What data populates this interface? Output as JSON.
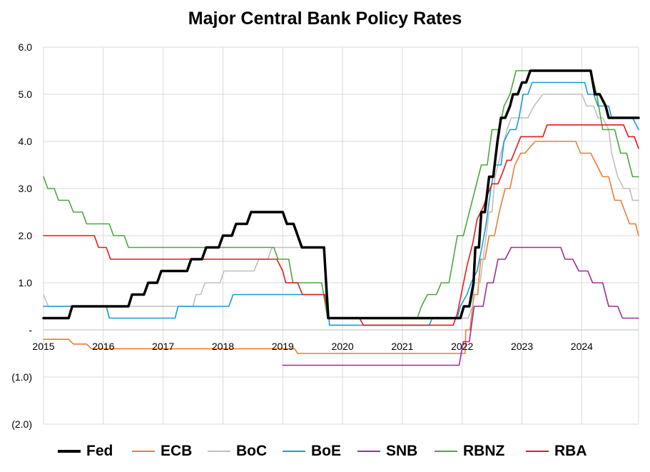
{
  "chart_data": {
    "type": "line",
    "title": "Major Central Bank Policy Rates",
    "xlabel": "",
    "ylabel": "",
    "xlim": [
      2015.0,
      2024.95
    ],
    "ylim": [
      -2.0,
      6.0
    ],
    "x_ticks": [
      2015,
      2016,
      2017,
      2018,
      2019,
      2020,
      2021,
      2022,
      2023,
      2024
    ],
    "x_tick_labels": [
      "2015",
      "2016",
      "2017",
      "2018",
      "2019",
      "2020",
      "2021",
      "2022",
      "2023",
      "2024"
    ],
    "y_ticks": [
      6,
      5,
      4,
      3,
      2,
      1,
      0,
      -1,
      -2
    ],
    "y_tick_labels": [
      "6.0",
      "5.0",
      "4.0",
      "3.0",
      "2.0",
      "1.0",
      "-",
      "(1.0)",
      "(2.0)"
    ],
    "grid": true,
    "legend_position": "bottom",
    "series": [
      {
        "name": "Fed",
        "color": "#000000",
        "points": [
          [
            2015.0,
            0.25
          ],
          [
            2015.42,
            0.25
          ],
          [
            2015.48,
            0.5
          ],
          [
            2016.42,
            0.5
          ],
          [
            2016.48,
            0.75
          ],
          [
            2016.68,
            0.75
          ],
          [
            2016.75,
            1.0
          ],
          [
            2016.9,
            1.0
          ],
          [
            2016.97,
            1.25
          ],
          [
            2017.4,
            1.25
          ],
          [
            2017.47,
            1.5
          ],
          [
            2017.65,
            1.5
          ],
          [
            2017.72,
            1.75
          ],
          [
            2017.93,
            1.75
          ],
          [
            2018.0,
            2.0
          ],
          [
            2018.15,
            2.0
          ],
          [
            2018.22,
            2.25
          ],
          [
            2018.4,
            2.25
          ],
          [
            2018.47,
            2.5
          ],
          [
            2019.0,
            2.5
          ],
          [
            2019.07,
            2.25
          ],
          [
            2019.18,
            2.25
          ],
          [
            2019.32,
            1.75
          ],
          [
            2019.69,
            1.75
          ],
          [
            2019.76,
            0.25
          ],
          [
            2021.97,
            0.25
          ],
          [
            2022.03,
            0.5
          ],
          [
            2022.12,
            0.5
          ],
          [
            2022.19,
            1.0
          ],
          [
            2022.22,
            1.75
          ],
          [
            2022.28,
            1.75
          ],
          [
            2022.32,
            2.5
          ],
          [
            2022.38,
            2.5
          ],
          [
            2022.45,
            3.25
          ],
          [
            2022.52,
            3.25
          ],
          [
            2022.59,
            4.0
          ],
          [
            2022.65,
            4.5
          ],
          [
            2022.72,
            4.5
          ],
          [
            2022.8,
            4.75
          ],
          [
            2022.85,
            5.0
          ],
          [
            2022.93,
            5.0
          ],
          [
            2023.0,
            5.25
          ],
          [
            2023.07,
            5.25
          ],
          [
            2023.14,
            5.5
          ],
          [
            2024.15,
            5.5
          ],
          [
            2024.22,
            5.0
          ],
          [
            2024.3,
            5.0
          ],
          [
            2024.4,
            4.75
          ],
          [
            2024.45,
            4.5
          ],
          [
            2024.95,
            4.5
          ]
        ]
      },
      {
        "name": "ECB",
        "color": "#ed7d31",
        "points": [
          [
            2015.0,
            -0.2
          ],
          [
            2015.42,
            -0.2
          ],
          [
            2015.5,
            -0.3
          ],
          [
            2015.72,
            -0.3
          ],
          [
            2015.8,
            -0.4
          ],
          [
            2019.2,
            -0.4
          ],
          [
            2019.25,
            -0.5
          ],
          [
            2022.05,
            -0.5
          ],
          [
            2022.06,
            0.0
          ],
          [
            2022.13,
            0.0
          ],
          [
            2022.2,
            0.75
          ],
          [
            2022.26,
            0.75
          ],
          [
            2022.31,
            1.5
          ],
          [
            2022.38,
            1.5
          ],
          [
            2022.45,
            2.0
          ],
          [
            2022.54,
            2.0
          ],
          [
            2022.62,
            2.5
          ],
          [
            2022.72,
            3.0
          ],
          [
            2022.8,
            3.0
          ],
          [
            2022.88,
            3.5
          ],
          [
            2022.98,
            3.75
          ],
          [
            2023.05,
            3.75
          ],
          [
            2023.22,
            4.0
          ],
          [
            2023.9,
            4.0
          ],
          [
            2023.98,
            3.75
          ],
          [
            2024.15,
            3.75
          ],
          [
            2024.25,
            3.5
          ],
          [
            2024.35,
            3.25
          ],
          [
            2024.45,
            3.25
          ],
          [
            2024.55,
            2.75
          ],
          [
            2024.65,
            2.75
          ],
          [
            2024.8,
            2.25
          ],
          [
            2024.9,
            2.25
          ],
          [
            2024.95,
            2.0
          ]
        ]
      },
      {
        "name": "BoC",
        "color": "#bfbfbf",
        "points": [
          [
            2015.0,
            0.75
          ],
          [
            2015.08,
            0.5
          ],
          [
            2015.5,
            0.5
          ],
          [
            2017.02,
            0.5
          ],
          [
            2017.05,
            0.5
          ],
          [
            2017.07,
            0.5
          ],
          [
            2017.08,
            0.5
          ],
          [
            2017.1,
            0.5
          ],
          [
            2017.12,
            0.5
          ],
          [
            2017.17,
            0.5
          ],
          [
            2017.2,
            0.5
          ],
          [
            2017.5,
            0.5
          ],
          [
            2017.55,
            0.75
          ],
          [
            2017.63,
            0.75
          ],
          [
            2017.7,
            1.0
          ],
          [
            2017.95,
            1.0
          ],
          [
            2018.02,
            1.25
          ],
          [
            2018.52,
            1.25
          ],
          [
            2018.6,
            1.5
          ],
          [
            2018.75,
            1.5
          ],
          [
            2018.82,
            1.75
          ],
          [
            2019.7,
            1.75
          ],
          [
            2019.77,
            0.25
          ],
          [
            2022.1,
            0.25
          ],
          [
            2022.17,
            0.5
          ],
          [
            2022.2,
            1.0
          ],
          [
            2022.3,
            1.0
          ],
          [
            2022.35,
            1.5
          ],
          [
            2022.45,
            2.5
          ],
          [
            2022.5,
            2.5
          ],
          [
            2022.55,
            3.25
          ],
          [
            2022.65,
            3.75
          ],
          [
            2022.75,
            4.25
          ],
          [
            2022.82,
            4.5
          ],
          [
            2023.1,
            4.5
          ],
          [
            2023.2,
            4.75
          ],
          [
            2023.35,
            5.0
          ],
          [
            2024.0,
            5.0
          ],
          [
            2024.08,
            4.75
          ],
          [
            2024.2,
            4.75
          ],
          [
            2024.27,
            4.5
          ],
          [
            2024.35,
            4.5
          ],
          [
            2024.45,
            4.25
          ],
          [
            2024.5,
            3.75
          ],
          [
            2024.6,
            3.25
          ],
          [
            2024.7,
            3.0
          ],
          [
            2024.8,
            3.0
          ],
          [
            2024.85,
            2.75
          ],
          [
            2024.95,
            2.75
          ]
        ]
      },
      {
        "name": "BoE",
        "color": "#1b9bd4",
        "points": [
          [
            2015.0,
            0.5
          ],
          [
            2016.05,
            0.5
          ],
          [
            2016.1,
            0.25
          ],
          [
            2017.2,
            0.25
          ],
          [
            2017.25,
            0.5
          ],
          [
            2018.1,
            0.5
          ],
          [
            2018.17,
            0.75
          ],
          [
            2019.75,
            0.75
          ],
          [
            2019.78,
            0.1
          ],
          [
            2021.45,
            0.1
          ],
          [
            2021.5,
            0.25
          ],
          [
            2021.92,
            0.25
          ],
          [
            2021.97,
            0.5
          ],
          [
            2022.08,
            0.75
          ],
          [
            2022.15,
            1.0
          ],
          [
            2022.25,
            1.25
          ],
          [
            2022.33,
            1.75
          ],
          [
            2022.4,
            2.25
          ],
          [
            2022.48,
            3.0
          ],
          [
            2022.55,
            3.5
          ],
          [
            2022.65,
            3.5
          ],
          [
            2022.7,
            4.0
          ],
          [
            2022.8,
            4.25
          ],
          [
            2022.9,
            4.25
          ],
          [
            2022.95,
            4.5
          ],
          [
            2023.02,
            5.0
          ],
          [
            2023.1,
            5.0
          ],
          [
            2023.17,
            5.25
          ],
          [
            2024.05,
            5.25
          ],
          [
            2024.1,
            5.0
          ],
          [
            2024.2,
            5.0
          ],
          [
            2024.27,
            4.75
          ],
          [
            2024.45,
            4.75
          ],
          [
            2024.5,
            4.5
          ],
          [
            2024.85,
            4.5
          ],
          [
            2024.95,
            4.25
          ]
        ]
      },
      {
        "name": "SNB",
        "color": "#a02b93",
        "points": [
          [
            2019.0,
            -0.75
          ],
          [
            2021.95,
            -0.75
          ],
          [
            2022.02,
            -0.25
          ],
          [
            2022.12,
            -0.25
          ],
          [
            2022.2,
            0.5
          ],
          [
            2022.35,
            0.5
          ],
          [
            2022.42,
            1.0
          ],
          [
            2022.52,
            1.0
          ],
          [
            2022.6,
            1.5
          ],
          [
            2022.72,
            1.5
          ],
          [
            2022.82,
            1.75
          ],
          [
            2023.65,
            1.75
          ],
          [
            2023.72,
            1.5
          ],
          [
            2023.85,
            1.5
          ],
          [
            2023.95,
            1.25
          ],
          [
            2024.1,
            1.25
          ],
          [
            2024.18,
            1.0
          ],
          [
            2024.35,
            1.0
          ],
          [
            2024.45,
            0.5
          ],
          [
            2024.6,
            0.5
          ],
          [
            2024.68,
            0.25
          ],
          [
            2024.95,
            0.25
          ]
        ]
      },
      {
        "name": "RBNZ",
        "color": "#4aa83c",
        "points": [
          [
            2015.0,
            3.25
          ],
          [
            2015.07,
            3.0
          ],
          [
            2015.18,
            3.0
          ],
          [
            2015.25,
            2.75
          ],
          [
            2015.42,
            2.75
          ],
          [
            2015.5,
            2.5
          ],
          [
            2015.65,
            2.5
          ],
          [
            2015.72,
            2.25
          ],
          [
            2016.1,
            2.25
          ],
          [
            2016.17,
            2.0
          ],
          [
            2016.35,
            2.0
          ],
          [
            2016.42,
            1.75
          ],
          [
            2018.85,
            1.75
          ],
          [
            2018.92,
            1.5
          ],
          [
            2019.1,
            1.5
          ],
          [
            2019.17,
            1.0
          ],
          [
            2019.65,
            1.0
          ],
          [
            2019.75,
            0.25
          ],
          [
            2021.25,
            0.25
          ],
          [
            2021.32,
            0.5
          ],
          [
            2021.42,
            0.75
          ],
          [
            2021.57,
            0.75
          ],
          [
            2021.65,
            1.0
          ],
          [
            2021.78,
            1.0
          ],
          [
            2021.85,
            1.5
          ],
          [
            2021.92,
            2.0
          ],
          [
            2022.02,
            2.0
          ],
          [
            2022.12,
            2.5
          ],
          [
            2022.22,
            3.0
          ],
          [
            2022.32,
            3.5
          ],
          [
            2022.42,
            3.5
          ],
          [
            2022.5,
            4.25
          ],
          [
            2022.62,
            4.25
          ],
          [
            2022.7,
            4.75
          ],
          [
            2022.8,
            5.0
          ],
          [
            2022.85,
            5.25
          ],
          [
            2022.9,
            5.5
          ],
          [
            2024.15,
            5.5
          ],
          [
            2024.25,
            5.0
          ],
          [
            2024.35,
            4.25
          ],
          [
            2024.55,
            4.25
          ],
          [
            2024.65,
            3.75
          ],
          [
            2024.75,
            3.75
          ],
          [
            2024.85,
            3.25
          ],
          [
            2024.95,
            3.25
          ]
        ]
      },
      {
        "name": "RBA",
        "color": "#e31a1c",
        "points": [
          [
            2015.0,
            2.0
          ],
          [
            2015.85,
            2.0
          ],
          [
            2015.92,
            1.75
          ],
          [
            2016.05,
            1.75
          ],
          [
            2016.12,
            1.5
          ],
          [
            2018.9,
            1.5
          ],
          [
            2019.0,
            1.25
          ],
          [
            2019.05,
            1.0
          ],
          [
            2019.25,
            1.0
          ],
          [
            2019.33,
            0.75
          ],
          [
            2019.7,
            0.75
          ],
          [
            2019.77,
            0.25
          ],
          [
            2020.28,
            0.25
          ],
          [
            2020.35,
            0.1
          ],
          [
            2021.85,
            0.1
          ],
          [
            2021.92,
            0.35
          ],
          [
            2022.0,
            0.85
          ],
          [
            2022.08,
            1.35
          ],
          [
            2022.18,
            1.85
          ],
          [
            2022.25,
            2.35
          ],
          [
            2022.35,
            2.6
          ],
          [
            2022.42,
            2.85
          ],
          [
            2022.5,
            3.1
          ],
          [
            2022.6,
            3.1
          ],
          [
            2022.68,
            3.35
          ],
          [
            2022.75,
            3.6
          ],
          [
            2022.82,
            3.6
          ],
          [
            2022.9,
            3.85
          ],
          [
            2022.98,
            4.1
          ],
          [
            2023.35,
            4.1
          ],
          [
            2023.42,
            4.35
          ],
          [
            2024.7,
            4.35
          ],
          [
            2024.78,
            4.1
          ],
          [
            2024.88,
            4.1
          ],
          [
            2024.95,
            3.85
          ]
        ]
      }
    ]
  }
}
